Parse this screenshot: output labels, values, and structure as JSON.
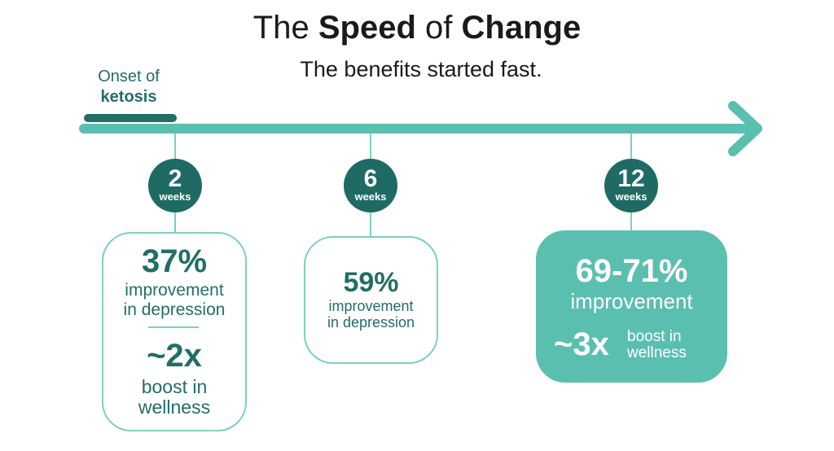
{
  "header": {
    "title": {
      "part1": "The",
      "part2": "Speed",
      "part3": "of",
      "part4": "Change"
    },
    "subtitle": "The benefits started fast."
  },
  "onset": {
    "line1": "Onset of",
    "line2": "ketosis"
  },
  "milestones": [
    {
      "number": "2",
      "unit": "weeks"
    },
    {
      "number": "6",
      "unit": "weeks"
    },
    {
      "number": "12",
      "unit": "weeks"
    }
  ],
  "cards": [
    {
      "stat": "37%",
      "lines": [
        "improvement",
        "in depression"
      ],
      "stat2": "~2x",
      "lines2": [
        "boost in",
        "wellness"
      ]
    },
    {
      "stat": "59%",
      "lines": [
        "improvement",
        "in depression"
      ]
    },
    {
      "stat": "69-71%",
      "lines": [
        "improvement"
      ],
      "stat2": "~3x",
      "lines2": [
        "boost in",
        "wellness"
      ]
    }
  ]
}
